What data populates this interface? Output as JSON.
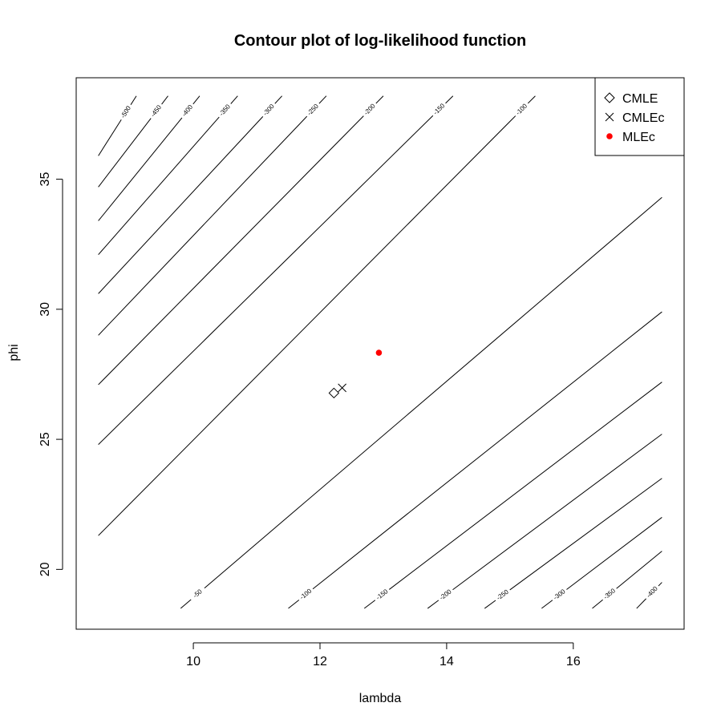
{
  "chart_data": {
    "type": "contour",
    "title": "Contour plot of log-likelihood function",
    "xlabel": "lambda",
    "ylabel": "phi",
    "xlim": [
      8.15,
      17.75
    ],
    "ylim": [
      17.7,
      38.9
    ],
    "x_ticks": [
      10,
      12,
      14,
      16
    ],
    "y_ticks": [
      20,
      25,
      30,
      35
    ],
    "x_tick_labels": [
      "10",
      "12",
      "14",
      "16"
    ],
    "y_tick_labels": [
      "20",
      "25",
      "30",
      "35"
    ],
    "contours": [
      {
        "level": "-500",
        "points": [
          [
            8.5,
            35.9
          ],
          [
            9.1,
            38.2
          ]
        ]
      },
      {
        "level": "-450",
        "points": [
          [
            8.5,
            34.7
          ],
          [
            9.6,
            38.2
          ]
        ]
      },
      {
        "level": "-400",
        "points": [
          [
            8.5,
            33.4
          ],
          [
            10.1,
            38.2
          ]
        ]
      },
      {
        "level": "-350",
        "points": [
          [
            8.5,
            32.1
          ],
          [
            10.7,
            38.2
          ]
        ]
      },
      {
        "level": "-300",
        "points": [
          [
            8.5,
            30.6
          ],
          [
            11.4,
            38.2
          ]
        ]
      },
      {
        "level": "-250",
        "points": [
          [
            8.5,
            29.0
          ],
          [
            12.1,
            38.2
          ]
        ]
      },
      {
        "level": "-200",
        "points": [
          [
            8.5,
            27.1
          ],
          [
            13.0,
            38.2
          ]
        ]
      },
      {
        "level": "-150",
        "points": [
          [
            8.5,
            24.8
          ],
          [
            14.1,
            38.2
          ]
        ]
      },
      {
        "level": "-100",
        "points": [
          [
            8.5,
            21.3
          ],
          [
            15.4,
            38.2
          ]
        ]
      },
      {
        "level": "-50",
        "points": [
          [
            9.8,
            18.5
          ],
          [
            17.4,
            34.3
          ]
        ]
      },
      {
        "level": "-100",
        "points": [
          [
            11.5,
            18.5
          ],
          [
            17.4,
            29.9
          ]
        ]
      },
      {
        "level": "-150",
        "points": [
          [
            12.7,
            18.5
          ],
          [
            17.4,
            27.2
          ]
        ]
      },
      {
        "level": "-200",
        "points": [
          [
            13.7,
            18.5
          ],
          [
            17.4,
            25.2
          ]
        ]
      },
      {
        "level": "-250",
        "points": [
          [
            14.6,
            18.5
          ],
          [
            17.4,
            23.5
          ]
        ]
      },
      {
        "level": "-300",
        "points": [
          [
            15.5,
            18.5
          ],
          [
            17.4,
            22.0
          ]
        ]
      },
      {
        "level": "-350",
        "points": [
          [
            16.3,
            18.5
          ],
          [
            17.4,
            20.7
          ]
        ]
      },
      {
        "level": "-400",
        "points": [
          [
            17.0,
            18.5
          ],
          [
            17.4,
            19.5
          ]
        ]
      }
    ],
    "points": [
      {
        "name": "CMLE",
        "x": 12.22,
        "y": 26.78,
        "marker": "diamond",
        "color": "#000000"
      },
      {
        "name": "CMLEc",
        "x": 12.35,
        "y": 26.98,
        "marker": "x",
        "color": "#000000"
      },
      {
        "name": "MLEc",
        "x": 12.93,
        "y": 28.33,
        "marker": "filled-circle",
        "color": "#ff0000"
      }
    ],
    "legend": {
      "position": "top-right",
      "entries": [
        {
          "label": "CMLE",
          "marker": "diamond",
          "color": "#000000"
        },
        {
          "label": "CMLEc",
          "marker": "x",
          "color": "#000000"
        },
        {
          "label": "MLEc",
          "marker": "filled-circle",
          "color": "#ff0000"
        }
      ]
    },
    "grid": false
  }
}
